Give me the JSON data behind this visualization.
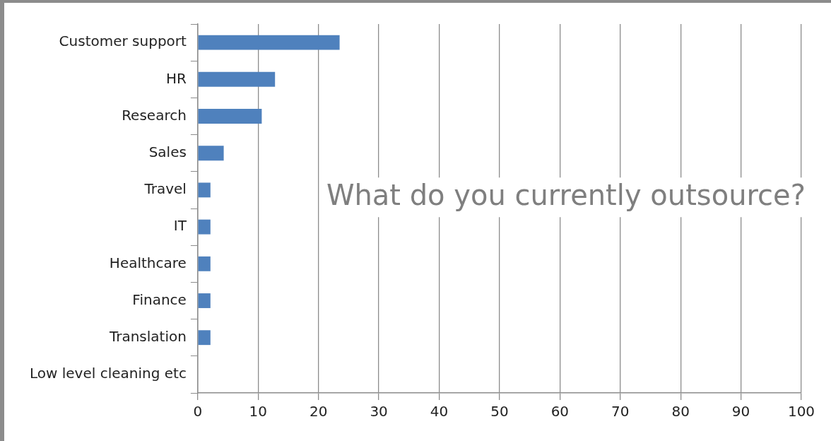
{
  "chart_data": {
    "type": "bar",
    "orientation": "horizontal",
    "title": "What do you currently outsource?",
    "categories": [
      "Customer support",
      "HR",
      "Research",
      "Sales",
      "Travel",
      "IT",
      "Healthcare",
      "Finance",
      "Translation",
      "Low level cleaning etc"
    ],
    "values": [
      23.5,
      12.8,
      10.6,
      4.3,
      2.1,
      2.1,
      2.1,
      2.1,
      2.1,
      0
    ],
    "color": "#4f81bd",
    "xlim": [
      0,
      100
    ],
    "xticks": [
      0,
      10,
      20,
      30,
      40,
      50,
      60,
      70,
      80,
      90,
      100
    ],
    "grid": "x",
    "legend": false
  }
}
